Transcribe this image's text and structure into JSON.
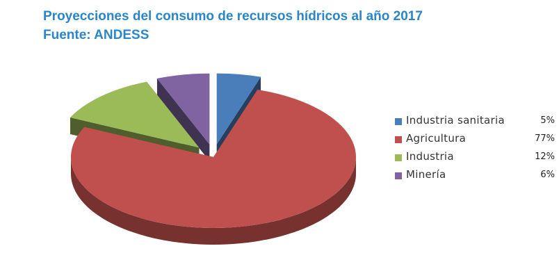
{
  "chart_data": {
    "type": "pie",
    "title": "Proyecciones del consumo de recursos hídricos al año 2017",
    "subtitle": "Fuente: ANDESS",
    "categories": [
      "Industria sanitaria",
      "Agricultura",
      "Industria",
      "Minería"
    ],
    "values": [
      5,
      77,
      12,
      6
    ],
    "value_labels": [
      "5%",
      "77%",
      "12%",
      "6%"
    ],
    "colors": [
      "#4a7ebb",
      "#c0504d",
      "#9bbb59",
      "#8064a2"
    ],
    "legend": "right",
    "style": "3d-exploded"
  }
}
